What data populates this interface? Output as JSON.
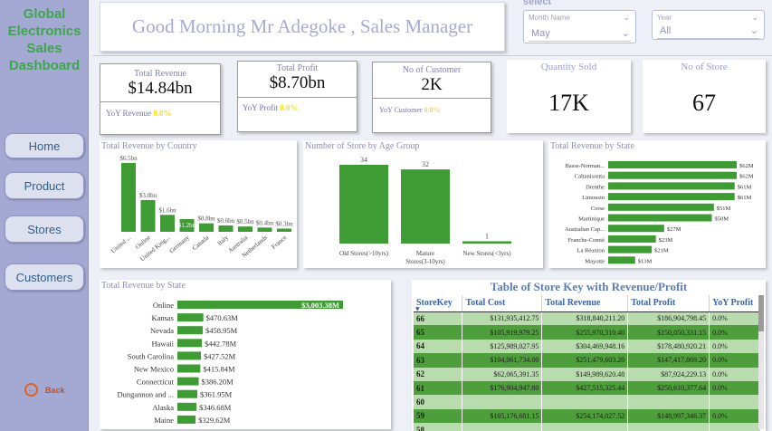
{
  "sidebar": {
    "brand": [
      "Global",
      "Electronics",
      "Sales",
      "Dashboard"
    ],
    "nav": [
      {
        "label": "Home"
      },
      {
        "label": "Product"
      },
      {
        "label": "Stores"
      },
      {
        "label": "Customers"
      }
    ],
    "back_label": "Back",
    "back_icon": "arrow-left-circle-icon"
  },
  "header": {
    "greeting": "Good Morning Mr Adegoke , Sales Manager",
    "select_label": "select",
    "month": {
      "caption": "Month Name",
      "value": "May"
    },
    "year": {
      "caption": "Year",
      "value": "All"
    }
  },
  "kpis": {
    "total_revenue": {
      "title": "Total Revenue",
      "value": "$14.84bn",
      "yoy_label": "YoY Revenue",
      "yoy_value": "0.0%"
    },
    "total_profit": {
      "title": "Total Profit",
      "value": "$8.70bn",
      "yoy_label": "YoY Profit",
      "yoy_value": "0.0%"
    },
    "customers": {
      "title": "No of Customer",
      "value": "2K",
      "yoy_label": "YoY Customer",
      "yoy_value": "0.0%"
    },
    "quantity": {
      "title": "Quantity Sold",
      "value": "17K"
    },
    "stores": {
      "title": "No of Store",
      "value": "67"
    }
  },
  "colors": {
    "bar": "#3f9b34",
    "bar_dark": "#2e8a24",
    "yoy": "#f5dd2a",
    "title": "#8a90be",
    "brand": "#3ea64b"
  },
  "chart_data": [
    {
      "type": "bar",
      "title": "Total Revenue by Country",
      "categories": [
        "United ...",
        "Online",
        "United King...",
        "Germany",
        "Canada",
        "Italy",
        "Australia",
        "Netherlands",
        "France"
      ],
      "values": [
        6.5,
        3.0,
        1.6,
        1.2,
        0.8,
        0.6,
        0.5,
        0.4,
        0.3
      ],
      "labels": [
        "$6.5bn",
        "$3.0bn",
        "$1.6bn",
        "$1.2bn",
        "$0.8bn",
        "$0.6bn",
        "$0.5bn",
        "$0.4bn",
        "$0.3bn"
      ],
      "unit": "bn"
    },
    {
      "type": "bar",
      "title": "Number of Store by Age Group",
      "categories": [
        "Old Stores(>10yrs)",
        "Mature Stores(3-10yrs)",
        "New Stores(<3yrs)"
      ],
      "values": [
        34,
        32,
        1
      ],
      "labels": [
        "34",
        "32",
        "1"
      ]
    },
    {
      "type": "bar",
      "orientation": "horizontal",
      "title": "Total Revenue by State",
      "categories": [
        "Basse-Norman...",
        "Caltanissetta",
        "Drenthe",
        "Limousin",
        "Corse",
        "Martinique",
        "Australian Cap...",
        "Franche-Comté",
        "La Réunion",
        "Mayotte"
      ],
      "values": [
        62,
        62,
        61,
        61,
        51,
        50,
        27,
        23,
        21,
        13
      ],
      "labels": [
        "$62M",
        "$62M",
        "$61M",
        "$61M",
        "$51M",
        "$50M",
        "$27M",
        "$23M",
        "$21M",
        "$13M"
      ],
      "unit": "M"
    },
    {
      "type": "bar",
      "orientation": "horizontal",
      "title": "Total Revenue by State",
      "categories": [
        "Online",
        "Kansas",
        "Nevada",
        "Hawaii",
        "South Carolina",
        "New Mexico",
        "Connecticut",
        "Dungannon and ...",
        "Alaska",
        "Maine"
      ],
      "values": [
        3003.38,
        470.63,
        458.95,
        442.78,
        427.52,
        415.84,
        386.2,
        361.95,
        346.68,
        329.62
      ],
      "labels": [
        "$3,003.38M",
        "$470.63M",
        "$458.95M",
        "$442.78M",
        "$427.52M",
        "$415.84M",
        "$386.20M",
        "$361.95M",
        "$346.68M",
        "$329.62M"
      ],
      "unit": "M"
    },
    {
      "type": "table",
      "title": "Table of Store Key with Revenue/Profit",
      "columns": [
        "StoreKey",
        "Total Cost",
        "Total Revenue",
        "Total Profit",
        "YoY Profit"
      ],
      "rows": [
        [
          "66",
          "$131,935,412.75",
          "$318,840,211.20",
          "$186,904,798.45",
          "0.0%"
        ],
        [
          "65",
          "$105,919,979.25",
          "$255,970,310.40",
          "$150,050,331.15",
          "0.0%"
        ],
        [
          "64",
          "$125,989,027.95",
          "$304,469,948.16",
          "$178,480,920.21",
          "0.0%"
        ],
        [
          "63",
          "$104,061,734.00",
          "$251,479,603.20",
          "$147,417,869.20",
          "0.0%"
        ],
        [
          "62",
          "$62,065,391.35",
          "$149,989,620.48",
          "$87,924,229.13",
          "0.0%"
        ],
        [
          "61",
          "$176,904,947.80",
          "$427,515,325.44",
          "$250,610,377.64",
          "0.0%"
        ],
        [
          "60",
          "",
          "",
          "",
          ""
        ],
        [
          "59",
          "$105,176,681.15",
          "$254,174,027.52",
          "$148,997,346.37",
          "0.0%"
        ],
        [
          "58",
          "",
          "",
          "",
          ""
        ]
      ]
    }
  ]
}
